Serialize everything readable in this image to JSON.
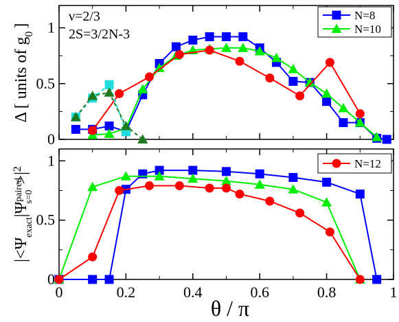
{
  "chart_data": [
    {
      "type": "line",
      "ylabel": "Δ [ units of g",
      "ylabel_sub": "0",
      "ylabel_end": "]",
      "xlim": [
        0,
        1
      ],
      "ylim": [
        0,
        1.2
      ],
      "yticks": [
        0,
        0.5,
        1
      ],
      "ytick_labels": [
        "0",
        "0.5",
        "1"
      ],
      "annotations": [
        "ν=2/3",
        "2S=3/2N-3"
      ],
      "legend": "top-right",
      "series": [
        {
          "name": "N=8",
          "color": "#0000ff",
          "marker": "square",
          "dashed": false,
          "x": [
            0.05,
            0.1,
            0.15,
            0.2,
            0.25,
            0.3,
            0.35,
            0.4,
            0.45,
            0.5,
            0.55,
            0.6,
            0.65,
            0.7,
            0.75,
            0.8,
            0.85,
            0.9,
            0.95,
            0.98
          ],
          "y": [
            0.09,
            0.09,
            0.12,
            0.07,
            0.4,
            0.68,
            0.83,
            0.89,
            0.92,
            0.92,
            0.92,
            0.82,
            0.69,
            0.52,
            0.51,
            0.34,
            0.15,
            0.15,
            0.01,
            0.0
          ]
        },
        {
          "name": "N=10",
          "color": "#00ee00",
          "marker": "triangle",
          "dashed": false,
          "x": [
            0.1,
            0.15,
            0.2,
            0.25,
            0.3,
            0.35,
            0.4,
            0.45,
            0.5,
            0.55,
            0.6,
            0.65,
            0.7,
            0.75,
            0.8,
            0.85,
            0.9,
            0.95
          ],
          "y": [
            0.04,
            0.05,
            0.1,
            0.45,
            0.64,
            0.75,
            0.8,
            0.81,
            0.82,
            0.82,
            0.79,
            0.73,
            0.63,
            0.51,
            0.41,
            0.28,
            0.15,
            0.02
          ]
        },
        {
          "name": "",
          "color": "#ff0000",
          "marker": "circle",
          "dashed": false,
          "x": [
            0.1,
            0.18,
            0.27,
            0.36,
            0.45,
            0.54,
            0.63,
            0.72,
            0.81,
            0.9
          ],
          "y": [
            0.08,
            0.41,
            0.56,
            0.76,
            0.8,
            0.7,
            0.55,
            0.39,
            0.69,
            0.23
          ]
        },
        {
          "name": "",
          "color": "#22dddd",
          "marker": "square",
          "dashed": true,
          "x": [
            0.05,
            0.1,
            0.15,
            0.2
          ],
          "y": [
            0.2,
            0.37,
            0.49,
            0.07
          ]
        },
        {
          "name": "",
          "color": "#1e7a1e",
          "marker": "triangle",
          "dashed": true,
          "x": [
            0.05,
            0.1,
            0.15,
            0.2,
            0.25
          ],
          "y": [
            0.2,
            0.39,
            0.42,
            0.12,
            0.0
          ]
        }
      ]
    },
    {
      "type": "line",
      "xlabel": "θ / π",
      "ylabel": "|<Ψ",
      "ylabel_sub1": "exact",
      "ylabel_mid": "|Ψ",
      "ylabel_sup": "paired",
      "ylabel_sub2": "s=0",
      "ylabel_end": ">|",
      "ylabel_pow": "2",
      "xlim": [
        0,
        1
      ],
      "ylim": [
        0,
        1.1
      ],
      "xticks": [
        0,
        0.2,
        0.4,
        0.6,
        0.8,
        1
      ],
      "xtick_labels": [
        "0",
        "0.2",
        "0.4",
        "0.6",
        "0.8",
        "1"
      ],
      "yticks": [
        0,
        0.5,
        1
      ],
      "ytick_labels": [
        "0",
        "0.5",
        "1"
      ],
      "legend": "top-right",
      "series": [
        {
          "name": "",
          "color": "#0000ff",
          "marker": "square",
          "dashed": false,
          "x": [
            0.0,
            0.1,
            0.15,
            0.2,
            0.25,
            0.3,
            0.4,
            0.5,
            0.6,
            0.7,
            0.8,
            0.9,
            0.95
          ],
          "y": [
            0.0,
            0.0,
            0.0,
            0.76,
            0.89,
            0.92,
            0.92,
            0.91,
            0.89,
            0.86,
            0.82,
            0.72,
            0.0
          ]
        },
        {
          "name": "",
          "color": "#00ee00",
          "marker": "triangle",
          "dashed": false,
          "x": [
            0.0,
            0.1,
            0.2,
            0.3,
            0.4,
            0.5,
            0.6,
            0.7,
            0.8,
            0.9
          ],
          "y": [
            0.0,
            0.78,
            0.87,
            0.87,
            0.85,
            0.83,
            0.8,
            0.76,
            0.65,
            0.0
          ]
        },
        {
          "name": "N=12",
          "color": "#ff0000",
          "marker": "circle",
          "dashed": false,
          "x": [
            0.0,
            0.1,
            0.18,
            0.27,
            0.36,
            0.45,
            0.5,
            0.54,
            0.63,
            0.72,
            0.81,
            0.9
          ],
          "y": [
            0.0,
            0.19,
            0.75,
            0.79,
            0.79,
            0.77,
            0.77,
            0.72,
            0.66,
            0.56,
            0.4,
            0.0
          ]
        }
      ]
    }
  ]
}
